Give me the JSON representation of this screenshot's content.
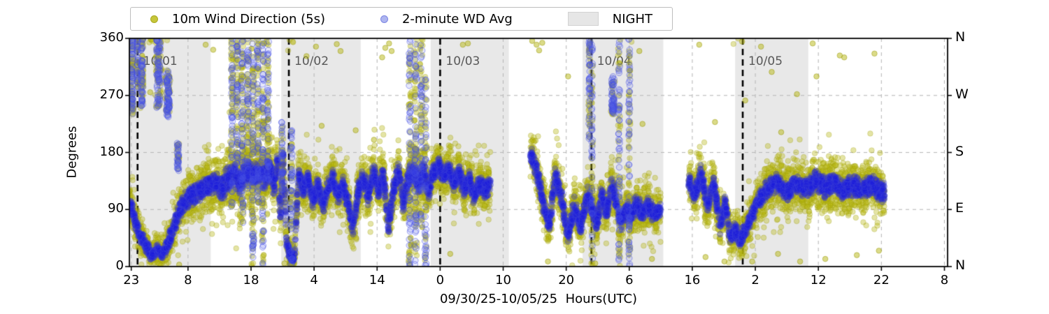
{
  "legend": {
    "items": [
      {
        "label": "10m Wind Direction (5s)",
        "marker": "dot",
        "color": "#c6c63a",
        "edge": "#a9a922"
      },
      {
        "label": "2-minute WD Avg",
        "marker": "dot",
        "color": "#aeb5f0",
        "edge": "#7b85e2"
      },
      {
        "label": "NIGHT",
        "marker": "patch",
        "color": "#e6e6e6",
        "edge": "#d2d2d2"
      }
    ]
  },
  "chart_data": {
    "type": "scatter",
    "xlabel": "09/30/25-10/05/25  Hours(UTC)",
    "ylabel": "Degrees",
    "ylim": [
      0,
      360
    ],
    "xlim_hours": [
      22.7,
      152.5
    ],
    "yticks": {
      "values": [
        0,
        90,
        180,
        270,
        360
      ],
      "right_labels": [
        "N",
        "E",
        "S",
        "W",
        "N"
      ]
    },
    "xticks": {
      "hours": [
        23,
        32,
        42,
        52,
        62,
        72,
        82,
        92,
        102,
        112,
        122,
        132,
        142,
        152
      ],
      "labels": [
        "23",
        "8",
        "18",
        "4",
        "14",
        "0",
        "10",
        "20",
        "6",
        "16",
        "2",
        "12",
        "22",
        "8"
      ]
    },
    "grid": {
      "dashed": true,
      "color": "#b9b9b9"
    },
    "day_lines": [
      {
        "hour": 24,
        "label": "10/01"
      },
      {
        "hour": 48,
        "label": "10/02"
      },
      {
        "hour": 72,
        "label": "10/03"
      },
      {
        "hour": 96,
        "label": "10/04"
      },
      {
        "hour": 120,
        "label": "10/05"
      }
    ],
    "night_bands": [
      [
        22.7,
        35.6
      ],
      [
        46.8,
        59.4
      ],
      [
        70.5,
        82.9
      ],
      [
        94.6,
        107.4
      ],
      [
        118.8,
        130.4
      ]
    ],
    "night_color": "#e8e8e8",
    "series": [
      {
        "name": "10m Wind Direction (5s)",
        "fill": "rgba(184,184,18,0.38)",
        "stroke": "rgba(150,150,8,0.28)",
        "radius": 3.8,
        "pts_per_hour": 70
      },
      {
        "name": "2-minute WD Avg",
        "fill": "rgba(28,28,218,0.30)",
        "stroke": "rgba(70,75,215,0.35)",
        "radius": 4.2,
        "pts_per_hour": 46
      }
    ],
    "path_keypoints": [
      [
        22.7,
        100,
        30
      ],
      [
        23.0,
        95,
        30
      ],
      [
        23.5,
        75,
        30
      ],
      [
        24.3,
        50,
        28
      ],
      [
        25.2,
        35,
        25
      ],
      [
        26.2,
        18,
        20
      ],
      [
        27.2,
        28,
        22
      ],
      [
        28.0,
        18,
        20
      ],
      [
        29.0,
        40,
        30
      ],
      [
        30.0,
        70,
        35
      ],
      [
        31.0,
        95,
        35
      ],
      [
        32.0,
        108,
        38
      ],
      [
        33.5,
        118,
        40
      ],
      [
        35.0,
        128,
        42
      ],
      [
        36.3,
        132,
        40
      ],
      [
        37.3,
        122,
        45
      ],
      [
        38.3,
        138,
        50
      ],
      [
        39.3,
        148,
        55
      ],
      [
        40.2,
        132,
        55
      ],
      [
        41.2,
        152,
        55
      ],
      [
        42.2,
        142,
        55
      ],
      [
        43.2,
        152,
        50
      ],
      [
        44.2,
        138,
        50
      ],
      [
        45.0,
        158,
        45
      ],
      [
        45.6,
        125,
        45
      ],
      [
        46.2,
        168,
        40
      ],
      [
        46.7,
        70,
        40
      ],
      [
        47.1,
        178,
        35
      ],
      [
        47.6,
        40,
        30
      ],
      [
        48.2,
        18,
        22
      ],
      [
        48.9,
        12,
        20
      ],
      [
        49.5,
        148,
        35
      ],
      [
        50.3,
        120,
        35
      ],
      [
        51.0,
        140,
        35
      ],
      [
        51.8,
        105,
        35
      ],
      [
        52.6,
        130,
        35
      ],
      [
        53.4,
        95,
        35
      ],
      [
        54.2,
        125,
        35
      ],
      [
        55.0,
        140,
        35
      ],
      [
        55.8,
        110,
        35
      ],
      [
        56.6,
        130,
        35
      ],
      [
        57.4,
        100,
        38
      ],
      [
        58.2,
        60,
        35
      ],
      [
        59.0,
        120,
        38
      ],
      [
        59.8,
        140,
        38
      ],
      [
        60.6,
        110,
        40
      ],
      [
        61.4,
        150,
        40
      ],
      [
        62.2,
        120,
        40
      ],
      [
        63.0,
        145,
        42
      ],
      [
        63.8,
        60,
        40
      ],
      [
        64.6,
        120,
        42
      ],
      [
        65.4,
        150,
        42
      ],
      [
        66.2,
        100,
        42
      ],
      [
        67.0,
        140,
        45
      ],
      [
        67.8,
        150,
        45
      ],
      [
        68.6,
        130,
        45
      ],
      [
        69.4,
        150,
        42
      ],
      [
        70.2,
        120,
        40
      ],
      [
        71.0,
        150,
        38
      ],
      [
        71.8,
        160,
        36
      ],
      [
        72.6,
        140,
        35
      ],
      [
        73.4,
        155,
        35
      ],
      [
        74.2,
        130,
        35
      ],
      [
        75.0,
        150,
        35
      ],
      [
        75.8,
        120,
        35
      ],
      [
        76.6,
        140,
        35
      ],
      [
        77.4,
        110,
        35
      ],
      [
        78.2,
        130,
        35
      ],
      [
        79.0,
        120,
        35
      ],
      [
        80.0,
        128,
        35
      ],
      [
        86.3,
        178,
        35
      ],
      [
        87.3,
        150,
        38
      ],
      [
        88.3,
        100,
        40
      ],
      [
        89.3,
        65,
        35
      ],
      [
        90.3,
        145,
        40
      ],
      [
        91.3,
        105,
        40
      ],
      [
        92.3,
        48,
        35
      ],
      [
        93.3,
        95,
        38
      ],
      [
        94.3,
        62,
        35
      ],
      [
        95.3,
        115,
        38
      ],
      [
        96.0,
        95,
        38
      ],
      [
        96.8,
        65,
        35
      ],
      [
        97.6,
        115,
        38
      ],
      [
        98.4,
        85,
        38
      ],
      [
        99.2,
        130,
        40
      ],
      [
        100.0,
        95,
        40
      ],
      [
        100.8,
        70,
        38
      ],
      [
        101.6,
        95,
        38
      ],
      [
        102.4,
        80,
        38
      ],
      [
        103.2,
        100,
        38
      ],
      [
        104.0,
        85,
        36
      ],
      [
        105.0,
        95,
        36
      ],
      [
        106.0,
        80,
        34
      ],
      [
        107.0,
        90,
        34
      ],
      [
        111.4,
        135,
        36
      ],
      [
        112.4,
        112,
        36
      ],
      [
        113.4,
        148,
        38
      ],
      [
        114.4,
        95,
        38
      ],
      [
        115.4,
        132,
        38
      ],
      [
        116.4,
        65,
        36
      ],
      [
        117.2,
        102,
        36
      ],
      [
        118.0,
        45,
        32
      ],
      [
        118.8,
        58,
        32
      ],
      [
        119.6,
        42,
        30
      ],
      [
        120.6,
        60,
        32
      ],
      [
        121.6,
        85,
        34
      ],
      [
        122.6,
        105,
        36
      ],
      [
        124.0,
        122,
        38
      ],
      [
        125.5,
        132,
        38
      ],
      [
        127.0,
        118,
        38
      ],
      [
        128.5,
        130,
        38
      ],
      [
        130.0,
        122,
        40
      ],
      [
        131.5,
        135,
        40
      ],
      [
        133.0,
        125,
        40
      ],
      [
        134.5,
        132,
        40
      ],
      [
        136.0,
        120,
        40
      ],
      [
        137.5,
        128,
        40
      ],
      [
        139.0,
        122,
        40
      ],
      [
        140.5,
        130,
        38
      ],
      [
        142.0,
        118,
        38
      ],
      [
        142.5,
        115,
        38
      ]
    ],
    "gaps": [
      [
        80.0,
        86.3
      ],
      [
        107.0,
        111.4
      ]
    ],
    "bursts": [
      [
        23.15,
        0.25,
        240,
        360,
        50,
        60
      ],
      [
        24.0,
        0.15,
        280,
        360,
        25,
        30
      ],
      [
        24.7,
        0.25,
        250,
        360,
        45,
        55
      ],
      [
        27.3,
        0.5,
        250,
        360,
        60,
        80
      ],
      [
        28.8,
        0.4,
        235,
        310,
        40,
        70
      ],
      [
        30.4,
        0.25,
        150,
        195,
        15,
        30
      ],
      [
        39.0,
        0.2,
        90,
        360,
        55,
        45
      ],
      [
        39.8,
        0.2,
        150,
        360,
        45,
        40
      ],
      [
        40.6,
        0.25,
        60,
        360,
        65,
        55
      ],
      [
        41.5,
        0.2,
        120,
        360,
        45,
        42
      ],
      [
        42.3,
        0.25,
        0,
        360,
        65,
        55
      ],
      [
        43.1,
        0.2,
        100,
        360,
        45,
        42
      ],
      [
        43.9,
        0.25,
        0,
        360,
        65,
        55
      ],
      [
        44.7,
        0.2,
        130,
        360,
        42,
        38
      ],
      [
        46.9,
        0.15,
        120,
        230,
        22,
        28
      ],
      [
        48.4,
        0.3,
        0,
        215,
        38,
        48
      ],
      [
        67.2,
        0.25,
        0,
        360,
        65,
        55
      ],
      [
        68.1,
        0.25,
        0,
        360,
        65,
        55
      ],
      [
        69.0,
        0.25,
        60,
        360,
        50,
        42
      ],
      [
        69.7,
        0.2,
        0,
        300,
        42,
        38
      ],
      [
        95.7,
        0.2,
        200,
        360,
        32,
        42
      ],
      [
        96.1,
        0.15,
        0,
        360,
        38,
        40
      ],
      [
        99.4,
        0.35,
        240,
        300,
        22,
        55
      ],
      [
        100.4,
        0.18,
        0,
        360,
        42,
        55
      ],
      [
        102.0,
        0.18,
        0,
        360,
        42,
        55
      ]
    ],
    "outliers": [
      [
        26.0,
        275
      ],
      [
        34.8,
        350
      ],
      [
        36.0,
        342
      ],
      [
        50.8,
        332
      ],
      [
        52.3,
        347
      ],
      [
        55.6,
        351
      ],
      [
        56.2,
        340
      ],
      [
        62.8,
        330
      ],
      [
        63.3,
        345
      ],
      [
        63.9,
        352
      ],
      [
        64.3,
        340
      ],
      [
        75.6,
        350
      ],
      [
        76.4,
        352
      ],
      [
        86.6,
        356
      ],
      [
        87.3,
        350
      ],
      [
        87.7,
        341
      ],
      [
        88.2,
        353
      ],
      [
        92.3,
        300
      ],
      [
        103.6,
        340
      ],
      [
        104.1,
        225
      ],
      [
        113.1,
        350
      ],
      [
        115.6,
        228
      ],
      [
        120.4,
        262
      ],
      [
        122.9,
        347
      ],
      [
        124.6,
        307
      ],
      [
        126.1,
        212
      ],
      [
        131.1,
        352
      ],
      [
        131.7,
        300
      ],
      [
        135.4,
        333
      ],
      [
        136.1,
        330
      ],
      [
        140.9,
        336
      ],
      [
        128.6,
        272
      ],
      [
        61.5,
        200
      ],
      [
        58.6,
        215
      ],
      [
        53.2,
        222
      ],
      [
        47.3,
        5
      ],
      [
        30.6,
        3
      ],
      [
        73.6,
        20
      ],
      [
        89.1,
        8
      ],
      [
        114.1,
        15
      ],
      [
        117.1,
        8
      ],
      [
        125.6,
        20
      ],
      [
        133.1,
        12
      ],
      [
        138.1,
        18
      ],
      [
        129.1,
        8
      ],
      [
        141.6,
        25
      ],
      [
        96.6,
        5
      ],
      [
        105.6,
        12
      ],
      [
        119.9,
        355
      ],
      [
        121.5,
        8
      ]
    ]
  }
}
